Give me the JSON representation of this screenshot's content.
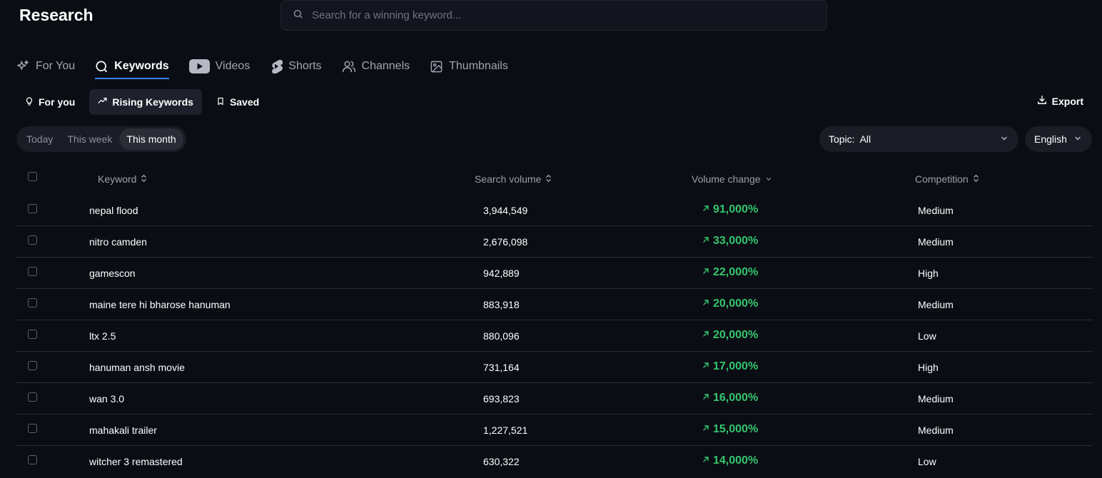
{
  "page": {
    "title": "Research"
  },
  "search": {
    "placeholder": "Search for a winning keyword..."
  },
  "tabs": [
    {
      "label": "For You",
      "icon": "sparkles-icon"
    },
    {
      "label": "Keywords",
      "icon": "search-icon",
      "active": true
    },
    {
      "label": "Videos",
      "icon": "youtube-play-icon"
    },
    {
      "label": "Shorts",
      "icon": "shorts-icon"
    },
    {
      "label": "Channels",
      "icon": "users-icon"
    },
    {
      "label": "Thumbnails",
      "icon": "image-icon"
    }
  ],
  "subtabs": [
    {
      "label": "For you",
      "icon": "lightbulb-icon"
    },
    {
      "label": "Rising Keywords",
      "icon": "trending-up-icon",
      "active": true
    },
    {
      "label": "Saved",
      "icon": "bookmark-icon"
    }
  ],
  "export": {
    "label": "Export",
    "icon": "download-icon"
  },
  "period": [
    {
      "label": "Today"
    },
    {
      "label": "This week"
    },
    {
      "label": "This month",
      "active": true
    }
  ],
  "topic": {
    "label": "Topic:",
    "value": "All"
  },
  "language": {
    "value": "English"
  },
  "table": {
    "headers": {
      "keyword": "Keyword",
      "search_volume": "Search volume",
      "volume_change": "Volume change",
      "competition": "Competition"
    },
    "rows": [
      {
        "keyword": "nepal flood",
        "volume": "3,944,549",
        "change": "91,000%",
        "competition": "Medium"
      },
      {
        "keyword": "nitro camden",
        "volume": "2,676,098",
        "change": "33,000%",
        "competition": "Medium"
      },
      {
        "keyword": "gamescon",
        "volume": "942,889",
        "change": "22,000%",
        "competition": "High"
      },
      {
        "keyword": "maine tere hi bharose hanuman",
        "volume": "883,918",
        "change": "20,000%",
        "competition": "Medium"
      },
      {
        "keyword": "ltx 2.5",
        "volume": "880,096",
        "change": "20,000%",
        "competition": "Low"
      },
      {
        "keyword": "hanuman ansh movie",
        "volume": "731,164",
        "change": "17,000%",
        "competition": "High"
      },
      {
        "keyword": "wan 3.0",
        "volume": "693,823",
        "change": "16,000%",
        "competition": "Medium"
      },
      {
        "keyword": "mahakali trailer",
        "volume": "1,227,521",
        "change": "15,000%",
        "competition": "Medium"
      },
      {
        "keyword": "witcher 3 remastered",
        "volume": "630,322",
        "change": "14,000%",
        "competition": "Low"
      }
    ]
  },
  "colors": {
    "accent": "#3b82f6",
    "positive": "#34c56e",
    "background": "#0b0d14"
  }
}
